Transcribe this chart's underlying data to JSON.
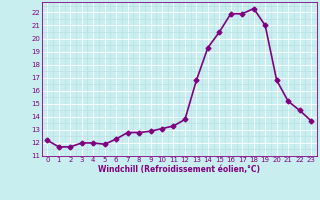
{
  "x": [
    0,
    1,
    2,
    3,
    4,
    5,
    6,
    7,
    8,
    9,
    10,
    11,
    12,
    13,
    14,
    15,
    16,
    17,
    18,
    19,
    20,
    21,
    22,
    23
  ],
  "y": [
    12.2,
    11.7,
    11.7,
    12.0,
    12.0,
    11.9,
    12.3,
    12.8,
    12.8,
    12.9,
    13.1,
    13.3,
    13.8,
    16.8,
    19.3,
    20.5,
    21.9,
    21.9,
    22.3,
    21.0,
    16.8,
    15.2,
    14.5,
    13.7
  ],
  "line_color": "#800080",
  "marker": "D",
  "markersize": 2.5,
  "bg_color": "#c8eef0",
  "grid_major_color": "#ffffff",
  "grid_minor_color": "#b8dde0",
  "xlabel": "Windchill (Refroidissement éolien,°C)",
  "xlim": [
    -0.5,
    23.5
  ],
  "ylim": [
    11,
    22.8
  ],
  "yticks": [
    11,
    12,
    13,
    14,
    15,
    16,
    17,
    18,
    19,
    20,
    21,
    22
  ],
  "xticks": [
    0,
    1,
    2,
    3,
    4,
    5,
    6,
    7,
    8,
    9,
    10,
    11,
    12,
    13,
    14,
    15,
    16,
    17,
    18,
    19,
    20,
    21,
    22,
    23
  ],
  "tick_color": "#800080",
  "label_color": "#800080",
  "axis_color": "#800080",
  "linewidth": 1.2,
  "tick_fontsize": 5.0,
  "xlabel_fontsize": 5.5
}
